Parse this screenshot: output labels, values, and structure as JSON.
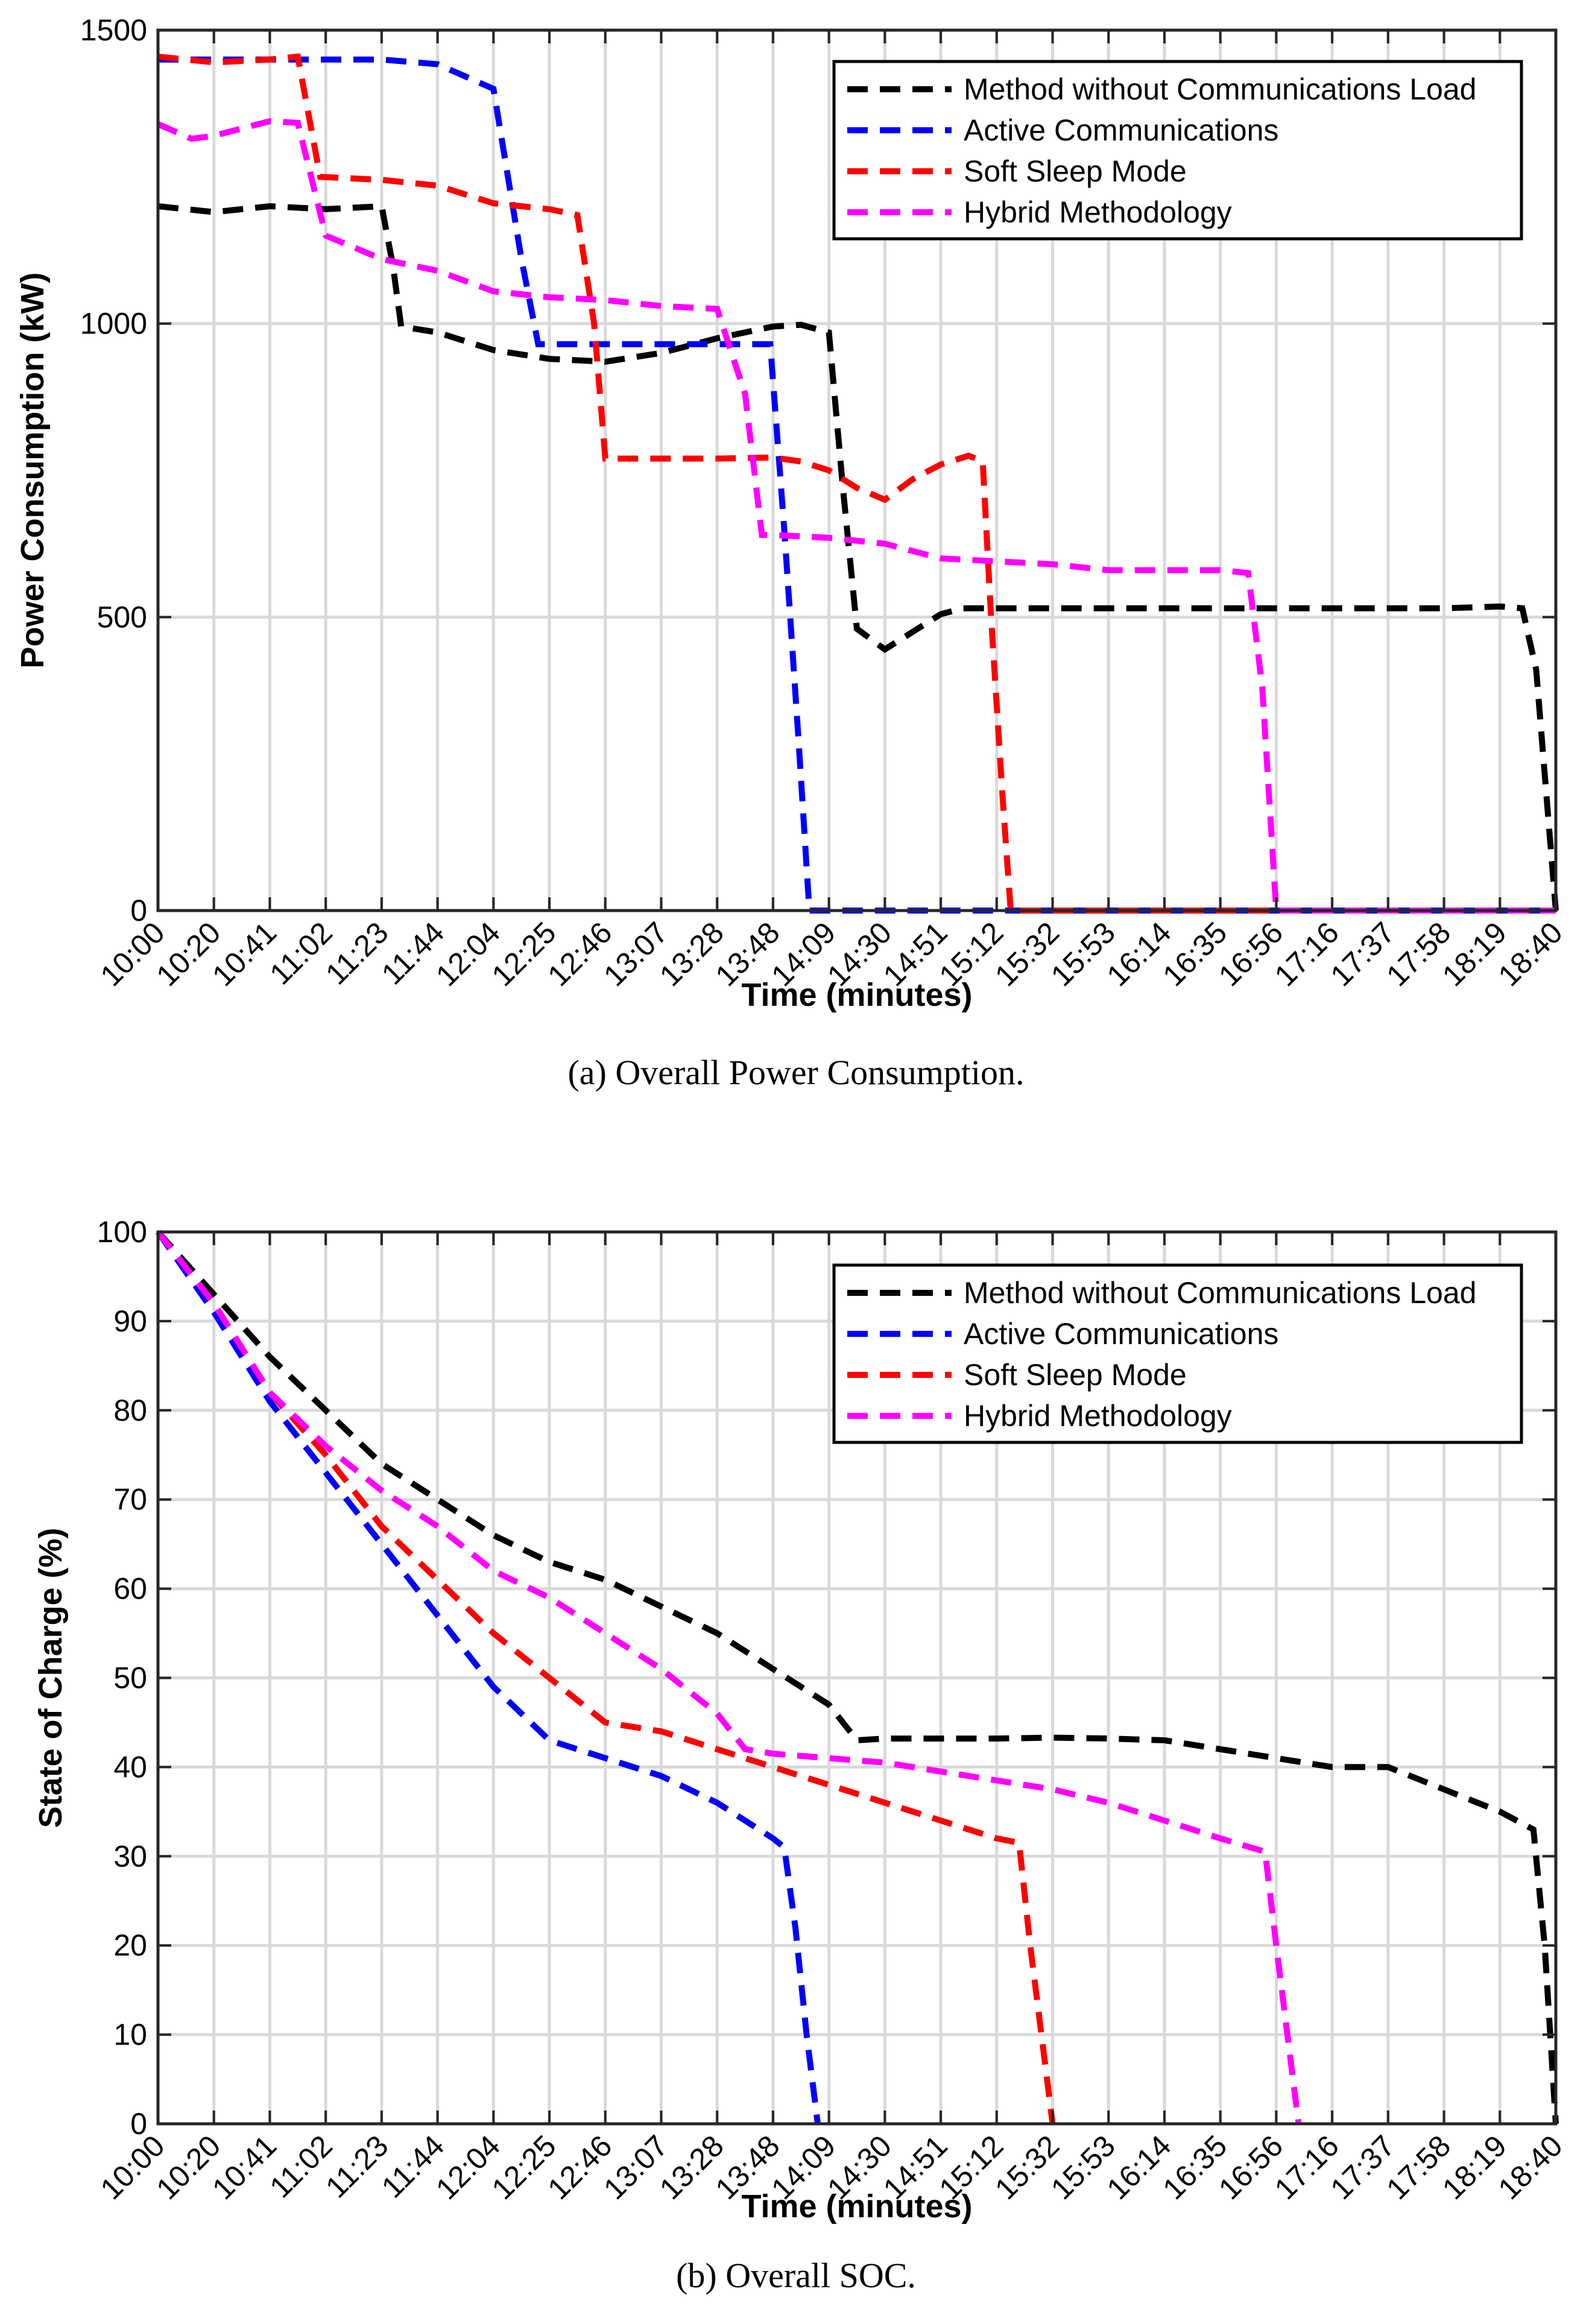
{
  "chart_data": [
    {
      "type": "line",
      "caption": "(a)  Overall Power Consumption.",
      "xlabel": "Time (minutes)",
      "ylabel": "Power Consumption (kW)",
      "ylim": [
        0,
        1500
      ],
      "yticks": [
        "0",
        "500",
        "1000",
        "1500"
      ],
      "categories": [
        "10:00",
        "10:20",
        "10:41",
        "11:02",
        "11:23",
        "11:44",
        "12:04",
        "12:25",
        "12:46",
        "13:07",
        "13:28",
        "13:48",
        "14:09",
        "14:30",
        "14:51",
        "15:12",
        "15:32",
        "15:53",
        "16:14",
        "16:35",
        "16:56",
        "17:16",
        "17:37",
        "17:58",
        "18:19",
        "18:40"
      ],
      "grid": true,
      "legend_position": "top-right",
      "series": [
        {
          "name": "Method without Communications Load",
          "color": "#000000",
          "points": [
            [
              0,
              1200
            ],
            [
              1,
              1190
            ],
            [
              2,
              1200
            ],
            [
              3,
              1195
            ],
            [
              4,
              1200
            ],
            [
              4.2,
              1100
            ],
            [
              4.35,
              995
            ],
            [
              5,
              985
            ],
            [
              6,
              955
            ],
            [
              7,
              940
            ],
            [
              8,
              935
            ],
            [
              9,
              950
            ],
            [
              10,
              975
            ],
            [
              11,
              995
            ],
            [
              11.5,
              998
            ],
            [
              12,
              985
            ],
            [
              12.25,
              720
            ],
            [
              12.5,
              480
            ],
            [
              13,
              445
            ],
            [
              13.5,
              475
            ],
            [
              14,
              505
            ],
            [
              14.4,
              515
            ],
            [
              15,
              515
            ],
            [
              16,
              515
            ],
            [
              17,
              515
            ],
            [
              18,
              515
            ],
            [
              19,
              515
            ],
            [
              20,
              515
            ],
            [
              21,
              515
            ],
            [
              22,
              515
            ],
            [
              23,
              515
            ],
            [
              24,
              518
            ],
            [
              24.4,
              515
            ],
            [
              24.65,
              410
            ],
            [
              25,
              0
            ]
          ]
        },
        {
          "name": "Active Communications",
          "color": "#0000ff",
          "points": [
            [
              0,
              1450
            ],
            [
              1,
              1450
            ],
            [
              2,
              1450
            ],
            [
              3,
              1450
            ],
            [
              4,
              1450
            ],
            [
              5,
              1442
            ],
            [
              6,
              1400
            ],
            [
              6.5,
              1110
            ],
            [
              6.8,
              965
            ],
            [
              7,
              965
            ],
            [
              8,
              965
            ],
            [
              9,
              965
            ],
            [
              10,
              965
            ],
            [
              10.95,
              965
            ],
            [
              11.2,
              650
            ],
            [
              11.45,
              300
            ],
            [
              11.65,
              0
            ],
            [
              12,
              0
            ],
            [
              13,
              0
            ],
            [
              14,
              0
            ],
            [
              15,
              0
            ],
            [
              16,
              0
            ],
            [
              17,
              0
            ],
            [
              18,
              0
            ],
            [
              19,
              0
            ],
            [
              20,
              0
            ],
            [
              21,
              0
            ],
            [
              22,
              0
            ],
            [
              23,
              0
            ],
            [
              24,
              0
            ],
            [
              25,
              0
            ]
          ]
        },
        {
          "name": "Soft Sleep Mode",
          "color": "#ff0000",
          "points": [
            [
              0,
              1455
            ],
            [
              1,
              1445
            ],
            [
              2,
              1450
            ],
            [
              2.5,
              1455
            ],
            [
              2.9,
              1250
            ],
            [
              4,
              1245
            ],
            [
              5,
              1235
            ],
            [
              6,
              1205
            ],
            [
              7,
              1195
            ],
            [
              7.5,
              1185
            ],
            [
              7.8,
              1000
            ],
            [
              8,
              770
            ],
            [
              9,
              770
            ],
            [
              10,
              770
            ],
            [
              11,
              772
            ],
            [
              11.5,
              765
            ],
            [
              12,
              750
            ],
            [
              12.5,
              720
            ],
            [
              13,
              700
            ],
            [
              13.5,
              735
            ],
            [
              14,
              760
            ],
            [
              14.5,
              775
            ],
            [
              14.75,
              765
            ],
            [
              14.9,
              500
            ],
            [
              15.1,
              200
            ],
            [
              15.25,
              0
            ],
            [
              16,
              0
            ],
            [
              17,
              0
            ],
            [
              18,
              0
            ],
            [
              19,
              0
            ],
            [
              20,
              0
            ],
            [
              21,
              0
            ],
            [
              22,
              0
            ],
            [
              23,
              0
            ],
            [
              24,
              0
            ],
            [
              25,
              0
            ]
          ]
        },
        {
          "name": "Hybrid Methodology",
          "color": "#ff00ff",
          "points": [
            [
              0,
              1340
            ],
            [
              0.6,
              1315
            ],
            [
              1,
              1320
            ],
            [
              2,
              1345
            ],
            [
              2.5,
              1342
            ],
            [
              3,
              1150
            ],
            [
              4,
              1110
            ],
            [
              5,
              1090
            ],
            [
              6,
              1055
            ],
            [
              7,
              1045
            ],
            [
              8,
              1040
            ],
            [
              9,
              1030
            ],
            [
              10,
              1025
            ],
            [
              10.5,
              880
            ],
            [
              10.8,
              640
            ],
            [
              11,
              640
            ],
            [
              12,
              635
            ],
            [
              13,
              625
            ],
            [
              14,
              600
            ],
            [
              15,
              595
            ],
            [
              16,
              590
            ],
            [
              17,
              580
            ],
            [
              18,
              580
            ],
            [
              19,
              580
            ],
            [
              19.5,
              575
            ],
            [
              19.75,
              380
            ],
            [
              20,
              0
            ],
            [
              21,
              0
            ],
            [
              22,
              0
            ],
            [
              23,
              0
            ],
            [
              24,
              0
            ],
            [
              25,
              0
            ]
          ]
        }
      ]
    },
    {
      "type": "line",
      "caption": "(b)  Overall SOC.",
      "xlabel": "Time (minutes)",
      "ylabel": "State of Charge (%)",
      "ylim": [
        0,
        100
      ],
      "yticks": [
        "0",
        "10",
        "20",
        "30",
        "40",
        "50",
        "60",
        "70",
        "80",
        "90",
        "100"
      ],
      "categories": [
        "10:00",
        "10:20",
        "10:41",
        "11:02",
        "11:23",
        "11:44",
        "12:04",
        "12:25",
        "12:46",
        "13:07",
        "13:28",
        "13:48",
        "14:09",
        "14:30",
        "14:51",
        "15:12",
        "15:32",
        "15:53",
        "16:14",
        "16:35",
        "16:56",
        "17:16",
        "17:37",
        "17:58",
        "18:19",
        "18:40"
      ],
      "grid": true,
      "legend_position": "top-right",
      "series": [
        {
          "name": "Method without Communications Load",
          "color": "#000000",
          "points": [
            [
              0,
              100
            ],
            [
              1,
              93
            ],
            [
              2,
              86
            ],
            [
              3,
              80
            ],
            [
              4,
              74
            ],
            [
              5,
              70
            ],
            [
              6,
              66
            ],
            [
              7,
              63
            ],
            [
              8,
              61
            ],
            [
              9,
              58
            ],
            [
              10,
              55
            ],
            [
              11,
              51
            ],
            [
              12,
              47
            ],
            [
              12.5,
              43
            ],
            [
              13,
              43.2
            ],
            [
              14,
              43.2
            ],
            [
              15,
              43.2
            ],
            [
              16,
              43.3
            ],
            [
              17,
              43.2
            ],
            [
              18,
              43
            ],
            [
              19,
              42
            ],
            [
              20,
              41
            ],
            [
              21,
              40
            ],
            [
              22,
              40
            ],
            [
              23,
              37.5
            ],
            [
              24,
              35
            ],
            [
              24.6,
              33
            ],
            [
              24.8,
              20
            ],
            [
              25,
              0
            ]
          ]
        },
        {
          "name": "Active Communications",
          "color": "#0000ff",
          "points": [
            [
              0,
              100
            ],
            [
              1,
              91
            ],
            [
              2,
              81
            ],
            [
              3,
              73
            ],
            [
              4,
              65
            ],
            [
              5,
              57
            ],
            [
              6,
              49
            ],
            [
              7,
              43
            ],
            [
              8,
              41
            ],
            [
              9,
              39
            ],
            [
              10,
              36
            ],
            [
              11,
              32
            ],
            [
              11.2,
              31
            ],
            [
              11.4,
              22
            ],
            [
              11.6,
              10
            ],
            [
              11.8,
              0
            ]
          ]
        },
        {
          "name": "Soft Sleep Mode",
          "color": "#ff0000",
          "points": [
            [
              0,
              100
            ],
            [
              1,
              92
            ],
            [
              2,
              82
            ],
            [
              3,
              75
            ],
            [
              4,
              67
            ],
            [
              5,
              61
            ],
            [
              6,
              55
            ],
            [
              7,
              50
            ],
            [
              8,
              45
            ],
            [
              9,
              44
            ],
            [
              10,
              42
            ],
            [
              11,
              40
            ],
            [
              12,
              38
            ],
            [
              13,
              36
            ],
            [
              14,
              34
            ],
            [
              15,
              32
            ],
            [
              15.4,
              31.5
            ],
            [
              15.6,
              20
            ],
            [
              15.8,
              10
            ],
            [
              16,
              0
            ]
          ]
        },
        {
          "name": "Hybrid Methodology",
          "color": "#ff00ff",
          "points": [
            [
              0,
              100
            ],
            [
              1,
              92
            ],
            [
              2,
              82
            ],
            [
              3,
              76
            ],
            [
              4,
              71
            ],
            [
              5,
              67
            ],
            [
              6,
              62
            ],
            [
              7,
              59
            ],
            [
              8,
              55
            ],
            [
              9,
              51
            ],
            [
              10,
              46
            ],
            [
              10.5,
              42
            ],
            [
              11,
              41.5
            ],
            [
              12,
              41
            ],
            [
              13,
              40.5
            ],
            [
              14,
              39.5
            ],
            [
              15,
              38.5
            ],
            [
              16,
              37.5
            ],
            [
              17,
              36
            ],
            [
              18,
              34
            ],
            [
              19,
              32
            ],
            [
              19.8,
              30.5
            ],
            [
              20,
              20
            ],
            [
              20.2,
              10
            ],
            [
              20.4,
              0
            ]
          ]
        }
      ]
    }
  ]
}
